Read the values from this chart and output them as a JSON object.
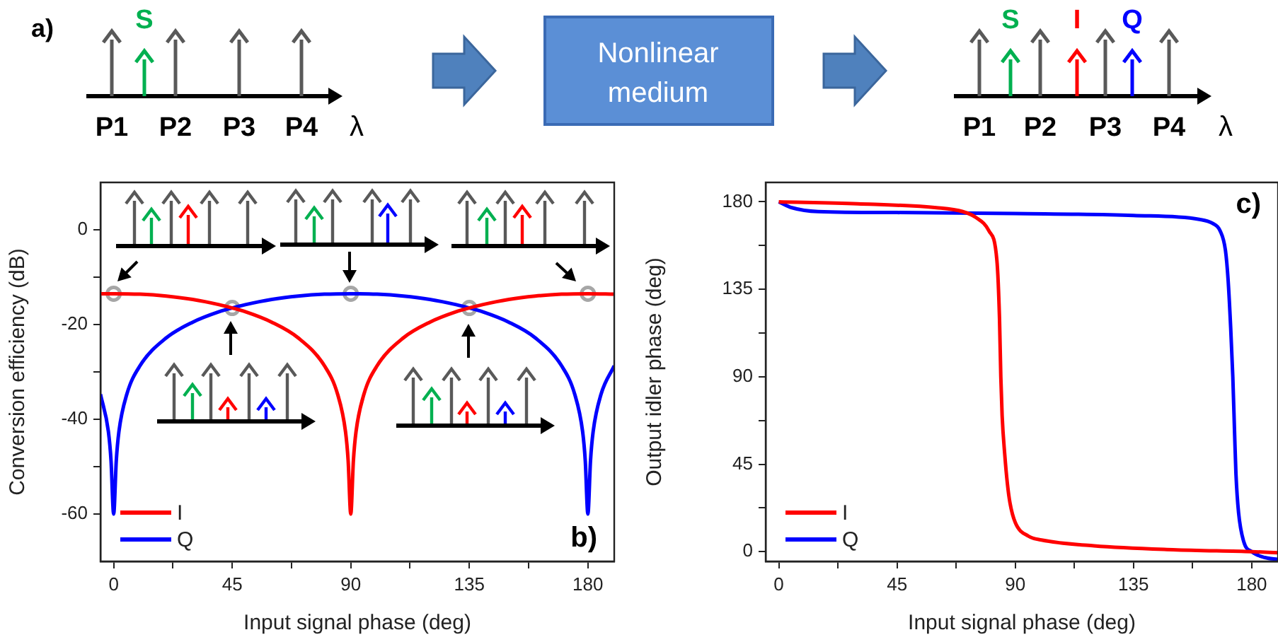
{
  "chart_data": [
    {
      "type": "other",
      "annotations": [
        "a)",
        "S",
        "P1",
        "P2",
        "P3",
        "P4",
        "λ",
        "Nonlinear medium",
        "S",
        "I",
        "Q",
        "P1",
        "P2",
        "P3",
        "P4",
        "λ"
      ]
    },
    {
      "type": "line",
      "xlabel": "Input signal phase (deg)",
      "ylabel": "Conversion efficiency (dB)",
      "xlim": [
        -5,
        190
      ],
      "xticks": [
        0,
        {
          "value": 22.5,
          "label": null
        },
        45,
        {
          "value": 67.5,
          "label": null
        },
        90,
        {
          "value": 112.5,
          "label": null
        },
        135,
        {
          "value": 157.5,
          "label": null
        },
        180
      ],
      "ylim": [
        -70,
        10
      ],
      "yticks": [
        -60,
        {
          "value": -50,
          "label": null
        },
        -40,
        {
          "value": -30,
          "label": null
        },
        -20,
        {
          "value": -10,
          "label": null
        },
        0
      ],
      "grid": false,
      "legend": "bottom left",
      "marker": "none",
      "line_style": "solid",
      "annotations": [
        "b)"
      ],
      "series": [
        {
          "name": "I",
          "color": "#ff0000",
          "x": [
            -5,
            0,
            10,
            20,
            30,
            40,
            45,
            50,
            60,
            70,
            80,
            85,
            88,
            89,
            90,
            91,
            92,
            95,
            100,
            110,
            120,
            130,
            135,
            140,
            150,
            160,
            170,
            180,
            190
          ],
          "values": [
            -13.5,
            -13.5,
            -13.6,
            -14.0,
            -14.7,
            -15.8,
            -16.5,
            -17.3,
            -19.5,
            -22.8,
            -28.7,
            -34.7,
            -42.6,
            -48.7,
            -60,
            -48.7,
            -42.6,
            -34.7,
            -28.7,
            -22.8,
            -19.5,
            -17.3,
            -16.5,
            -15.8,
            -14.7,
            -14.0,
            -13.6,
            -13.5,
            -13.6
          ]
        },
        {
          "name": "Q",
          "color": "#0000ff",
          "x": [
            -5,
            -2,
            -1,
            0,
            1,
            2,
            5,
            10,
            20,
            30,
            40,
            45,
            50,
            60,
            70,
            80,
            90,
            100,
            110,
            120,
            130,
            135,
            140,
            150,
            160,
            170,
            175,
            178,
            179,
            180,
            181,
            182,
            185,
            190
          ],
          "values": [
            -34.7,
            -42.6,
            -48.7,
            -60,
            -48.7,
            -42.6,
            -34.7,
            -28.7,
            -22.8,
            -19.5,
            -17.3,
            -16.5,
            -15.8,
            -14.7,
            -14.0,
            -13.6,
            -13.5,
            -13.6,
            -14.0,
            -14.7,
            -15.8,
            -16.5,
            -17.3,
            -19.5,
            -22.8,
            -28.7,
            -34.7,
            -42.6,
            -48.7,
            -60,
            -48.7,
            -42.6,
            -34.7,
            -28.7
          ]
        },
        {
          "type": "scatter",
          "marker": "circle",
          "color": "#a6a6a6",
          "x": [
            0,
            45,
            90,
            135,
            180
          ],
          "values": [
            -13.5,
            -16.5,
            -13.5,
            -16.5,
            -13.5
          ]
        }
      ]
    },
    {
      "type": "line",
      "xlabel": "Input signal phase (deg)",
      "ylabel": "Output idler phase (deg)",
      "xlim": [
        -5,
        190
      ],
      "xticks": [
        0,
        {
          "value": 22.5,
          "label": null
        },
        45,
        {
          "value": 67.5,
          "label": null
        },
        90,
        {
          "value": 112.5,
          "label": null
        },
        135,
        {
          "value": 157.5,
          "label": null
        },
        180
      ],
      "ylim": [
        -5,
        190
      ],
      "yticks": [
        0,
        {
          "value": 22.5,
          "label": null
        },
        45,
        {
          "value": 67.5,
          "label": null
        },
        90,
        {
          "value": 112.5,
          "label": null
        },
        135,
        {
          "value": 157.5,
          "label": null
        },
        180
      ],
      "grid": false,
      "legend": "bottom left",
      "marker": "none",
      "line_style": "solid",
      "annotations": [
        "c)"
      ],
      "series": [
        {
          "name": "I",
          "color": "#ff0000",
          "x": [
            0,
            30,
            60,
            70,
            75,
            80,
            83,
            84,
            84.5,
            85,
            86,
            87,
            88,
            90,
            95,
            100,
            120,
            150,
            180,
            190
          ],
          "values": [
            180,
            179,
            177,
            175,
            172,
            165,
            150,
            120,
            90,
            70,
            50,
            35,
            25,
            15,
            8,
            6,
            3,
            1,
            0,
            -0.5
          ]
        },
        {
          "name": "Q",
          "color": "#0000ff",
          "x": [
            0,
            5,
            15,
            45,
            90,
            135,
            160,
            165,
            168,
            170,
            171,
            172,
            172.8,
            173.5,
            174,
            175,
            177,
            180,
            185,
            190
          ],
          "values": [
            180,
            177,
            175,
            174.5,
            174,
            173,
            171,
            169,
            165,
            155,
            140,
            115,
            90,
            60,
            40,
            20,
            5,
            0,
            -3,
            -4
          ]
        }
      ]
    }
  ]
}
